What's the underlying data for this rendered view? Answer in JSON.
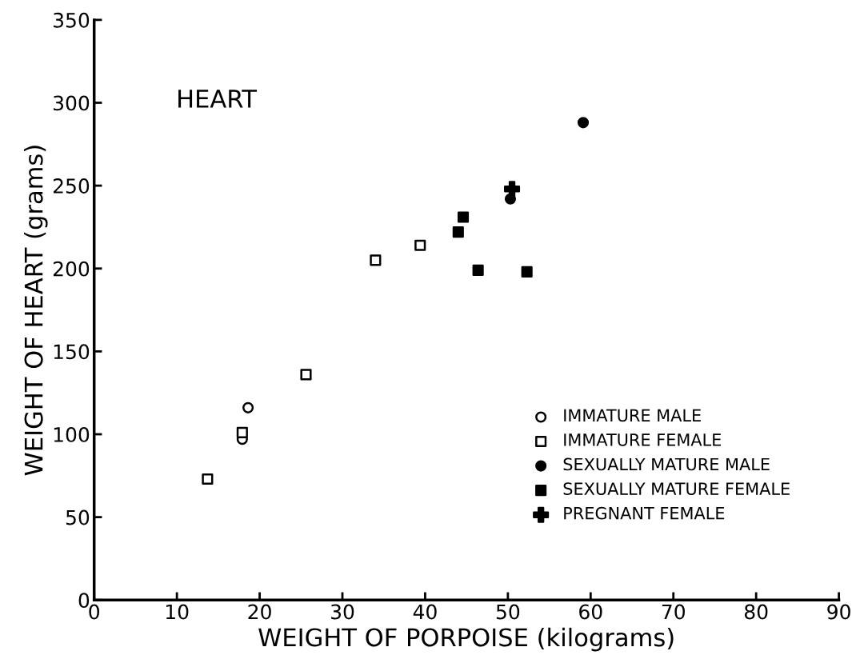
{
  "chart_data": {
    "type": "scatter",
    "xlabel": "WEIGHT OF PORPOISE (kilograms)",
    "ylabel": "WEIGHT OF HEART (grams)",
    "annotations": [
      "HEART"
    ],
    "xlim": [
      0,
      90
    ],
    "xticks": [
      0,
      10,
      20,
      30,
      40,
      50,
      60,
      70,
      80,
      90
    ],
    "ylim": [
      0,
      350
    ],
    "yticks": [
      0,
      50,
      100,
      150,
      200,
      250,
      300,
      350
    ],
    "grid": false,
    "legend": "bottom right",
    "series": [
      {
        "name": "IMMATURE MALE",
        "color": "#000000",
        "marker": "circle-open",
        "x": [
          18.6,
          17.9
        ],
        "values": [
          116,
          97
        ]
      },
      {
        "name": "IMMATURE FEMALE",
        "color": "#000000",
        "marker": "square-open",
        "x": [
          13.7,
          17.9,
          25.6,
          34.0,
          39.4
        ],
        "values": [
          73,
          101,
          136,
          205,
          214
        ]
      },
      {
        "name": "SEXUALLY MATURE MALE",
        "color": "#000000",
        "marker": "circle",
        "x": [
          50.3,
          59.1
        ],
        "values": [
          242,
          288
        ]
      },
      {
        "name": "SEXUALLY MATURE FEMALE",
        "color": "#000000",
        "marker": "square",
        "x": [
          44.0,
          44.6,
          46.4,
          52.3
        ],
        "values": [
          222,
          231,
          199,
          198
        ]
      },
      {
        "name": "PREGNANT FEMALE",
        "color": "#000000",
        "marker": "cross",
        "x": [
          50.5
        ],
        "values": [
          248
        ]
      }
    ]
  }
}
